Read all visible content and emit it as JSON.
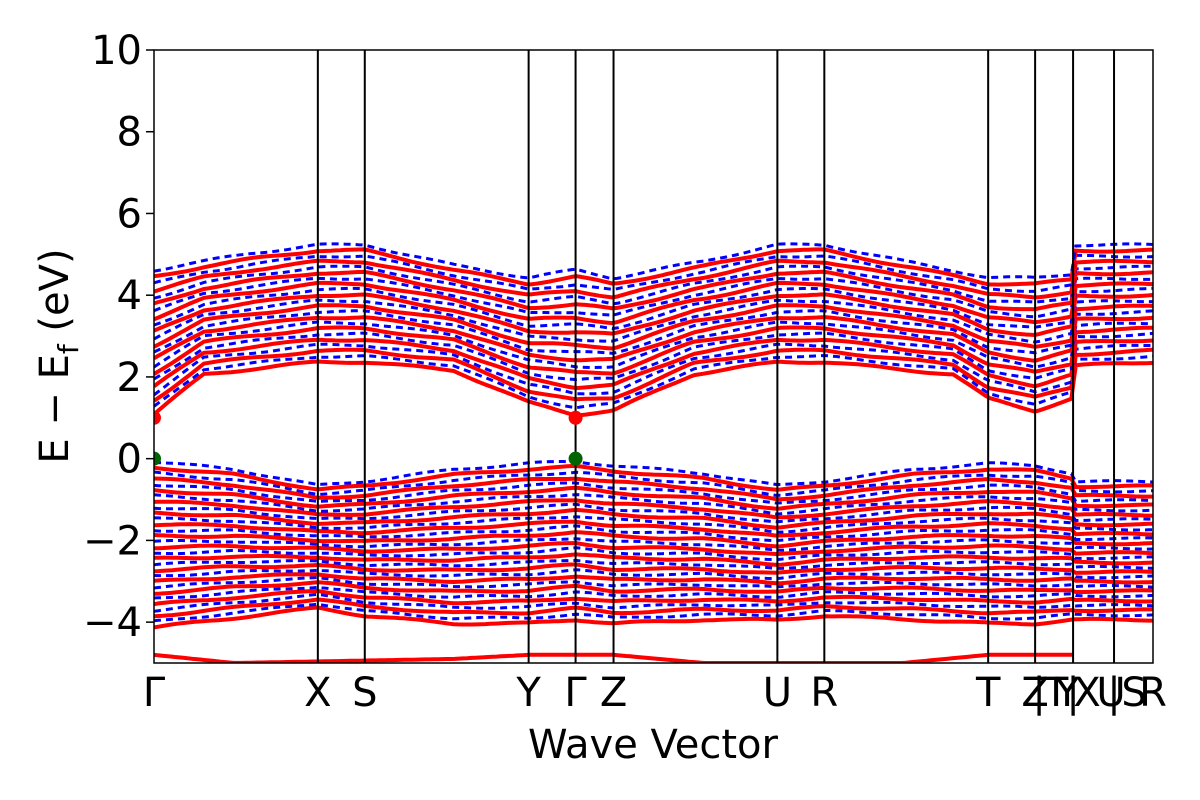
{
  "chart_data": {
    "type": "line",
    "title": "",
    "xlabel": "Wave Vector",
    "ylabel": "E − E_f (eV)",
    "ylabel_main": "E − E",
    "ylabel_sub": "f",
    "ylabel_unit": " (eV)",
    "xlim": [
      0,
      100
    ],
    "ylim": [
      -5,
      10
    ],
    "y_ticks": [
      -4,
      -2,
      0,
      2,
      4,
      6,
      8,
      10
    ],
    "y_tick_labels": [
      "−4",
      "−2",
      "0",
      "2",
      "4",
      "6",
      "8",
      "10"
    ],
    "grid": false,
    "colors": {
      "spin_up": "#ff0000",
      "spin_down": "#0000ff",
      "vbm": "#006400",
      "cbm": "#ff0000"
    },
    "kpoints": [
      {
        "label": "Γ",
        "x": 0
      },
      {
        "label": "X",
        "x": 16.4
      },
      {
        "label": "S",
        "x": 21.1
      },
      {
        "label": "Y",
        "x": 37.5
      },
      {
        "label": "Γ",
        "x": 42.2
      },
      {
        "label": "Z",
        "x": 46.0
      },
      {
        "label": "U",
        "x": 62.4
      },
      {
        "label": "R",
        "x": 67.1
      },
      {
        "label": "T",
        "x": 83.5
      },
      {
        "label": "Z",
        "x": 88.2
      },
      {
        "label": "|",
        "x": 88.6
      },
      {
        "label": "T",
        "x": 90.3
      },
      {
        "label": "Y",
        "x": 91.4
      },
      {
        "label": "|",
        "x": 92.0
      },
      {
        "label": "X",
        "x": 93.4
      },
      {
        "label": "U",
        "x": 95.8
      },
      {
        "label": "|",
        "x": 96.1
      },
      {
        "label": "S",
        "x": 98.1
      },
      {
        "label": "R",
        "x": 100
      }
    ],
    "vlines": [
      16.4,
      21.1,
      37.5,
      42.2,
      46.0,
      62.4,
      67.1,
      83.5,
      88.2,
      92.0,
      96.1
    ],
    "band_regions": {
      "conduction_bottom": [
        {
          "x": 0,
          "y": 1.0
        },
        {
          "x": 5,
          "y": 2.0
        },
        {
          "x": 16.4,
          "y": 2.3
        },
        {
          "x": 21.1,
          "y": 2.3
        },
        {
          "x": 30,
          "y": 2.1
        },
        {
          "x": 37.5,
          "y": 1.3
        },
        {
          "x": 42.2,
          "y": 1.0
        },
        {
          "x": 46,
          "y": 1.1
        },
        {
          "x": 54,
          "y": 2.0
        },
        {
          "x": 62.4,
          "y": 2.3
        },
        {
          "x": 67.1,
          "y": 2.3
        },
        {
          "x": 80,
          "y": 2.0
        },
        {
          "x": 83.5,
          "y": 1.4
        },
        {
          "x": 88.2,
          "y": 1.1
        },
        {
          "x": 92,
          "y": 1.4
        },
        {
          "x": 92,
          "y": 2.2
        },
        {
          "x": 100,
          "y": 2.3
        }
      ],
      "conduction_top": [
        {
          "x": 0,
          "y": 4.7
        },
        {
          "x": 10,
          "y": 5.1
        },
        {
          "x": 16.4,
          "y": 5.3
        },
        {
          "x": 21.1,
          "y": 5.3
        },
        {
          "x": 30,
          "y": 4.8
        },
        {
          "x": 37.5,
          "y": 4.5
        },
        {
          "x": 42.2,
          "y": 4.7
        },
        {
          "x": 46,
          "y": 4.5
        },
        {
          "x": 55,
          "y": 4.9
        },
        {
          "x": 62.4,
          "y": 5.3
        },
        {
          "x": 67.1,
          "y": 5.3
        },
        {
          "x": 75,
          "y": 4.9
        },
        {
          "x": 83.5,
          "y": 4.5
        },
        {
          "x": 88.2,
          "y": 4.5
        },
        {
          "x": 92,
          "y": 4.6
        },
        {
          "x": 92,
          "y": 5.3
        },
        {
          "x": 100,
          "y": 5.3
        }
      ],
      "valence_top": [
        {
          "x": 0,
          "y": 0.0
        },
        {
          "x": 8,
          "y": -0.2
        },
        {
          "x": 16.4,
          "y": -0.6
        },
        {
          "x": 21.1,
          "y": -0.5
        },
        {
          "x": 30,
          "y": -0.2
        },
        {
          "x": 37.5,
          "y": -0.05
        },
        {
          "x": 42.2,
          "y": 0.0
        },
        {
          "x": 46,
          "y": -0.1
        },
        {
          "x": 55,
          "y": -0.3
        },
        {
          "x": 62.4,
          "y": -0.6
        },
        {
          "x": 67.1,
          "y": -0.5
        },
        {
          "x": 76,
          "y": -0.2
        },
        {
          "x": 83.5,
          "y": -0.05
        },
        {
          "x": 88.2,
          "y": -0.1
        },
        {
          "x": 92,
          "y": -0.3
        },
        {
          "x": 92,
          "y": -0.5
        },
        {
          "x": 100,
          "y": -0.5
        }
      ],
      "valence_bottom": [
        {
          "x": 0,
          "y": -4.2
        },
        {
          "x": 10,
          "y": -3.9
        },
        {
          "x": 16.4,
          "y": -3.7
        },
        {
          "x": 21.1,
          "y": -3.9
        },
        {
          "x": 30,
          "y": -4.1
        },
        {
          "x": 37.5,
          "y": -4.1
        },
        {
          "x": 42.2,
          "y": -4.0
        },
        {
          "x": 46,
          "y": -4.1
        },
        {
          "x": 55,
          "y": -4.0
        },
        {
          "x": 62.4,
          "y": -4.0
        },
        {
          "x": 67.1,
          "y": -3.9
        },
        {
          "x": 76,
          "y": -4.0
        },
        {
          "x": 83.5,
          "y": -4.1
        },
        {
          "x": 88.2,
          "y": -4.1
        },
        {
          "x": 92,
          "y": -4.0
        },
        {
          "x": 100,
          "y": -4.0
        }
      ],
      "deep_band": [
        {
          "x": 0,
          "y": -4.8
        },
        {
          "x": 8,
          "y": -5.0
        },
        {
          "x": 30,
          "y": -4.9
        },
        {
          "x": 37.5,
          "y": -4.8
        },
        {
          "x": 46,
          "y": -4.8
        },
        {
          "x": 55,
          "y": -5.0
        },
        {
          "x": 75,
          "y": -5.0
        },
        {
          "x": 83.5,
          "y": -4.8
        },
        {
          "x": 92,
          "y": -4.8
        }
      ]
    },
    "vbm_points": [
      {
        "x": 0,
        "y": 0.0
      },
      {
        "x": 42.2,
        "y": 0.0
      }
    ],
    "cbm_points": [
      {
        "x": 0,
        "y": 1.0
      },
      {
        "x": 42.2,
        "y": 1.0
      }
    ]
  }
}
